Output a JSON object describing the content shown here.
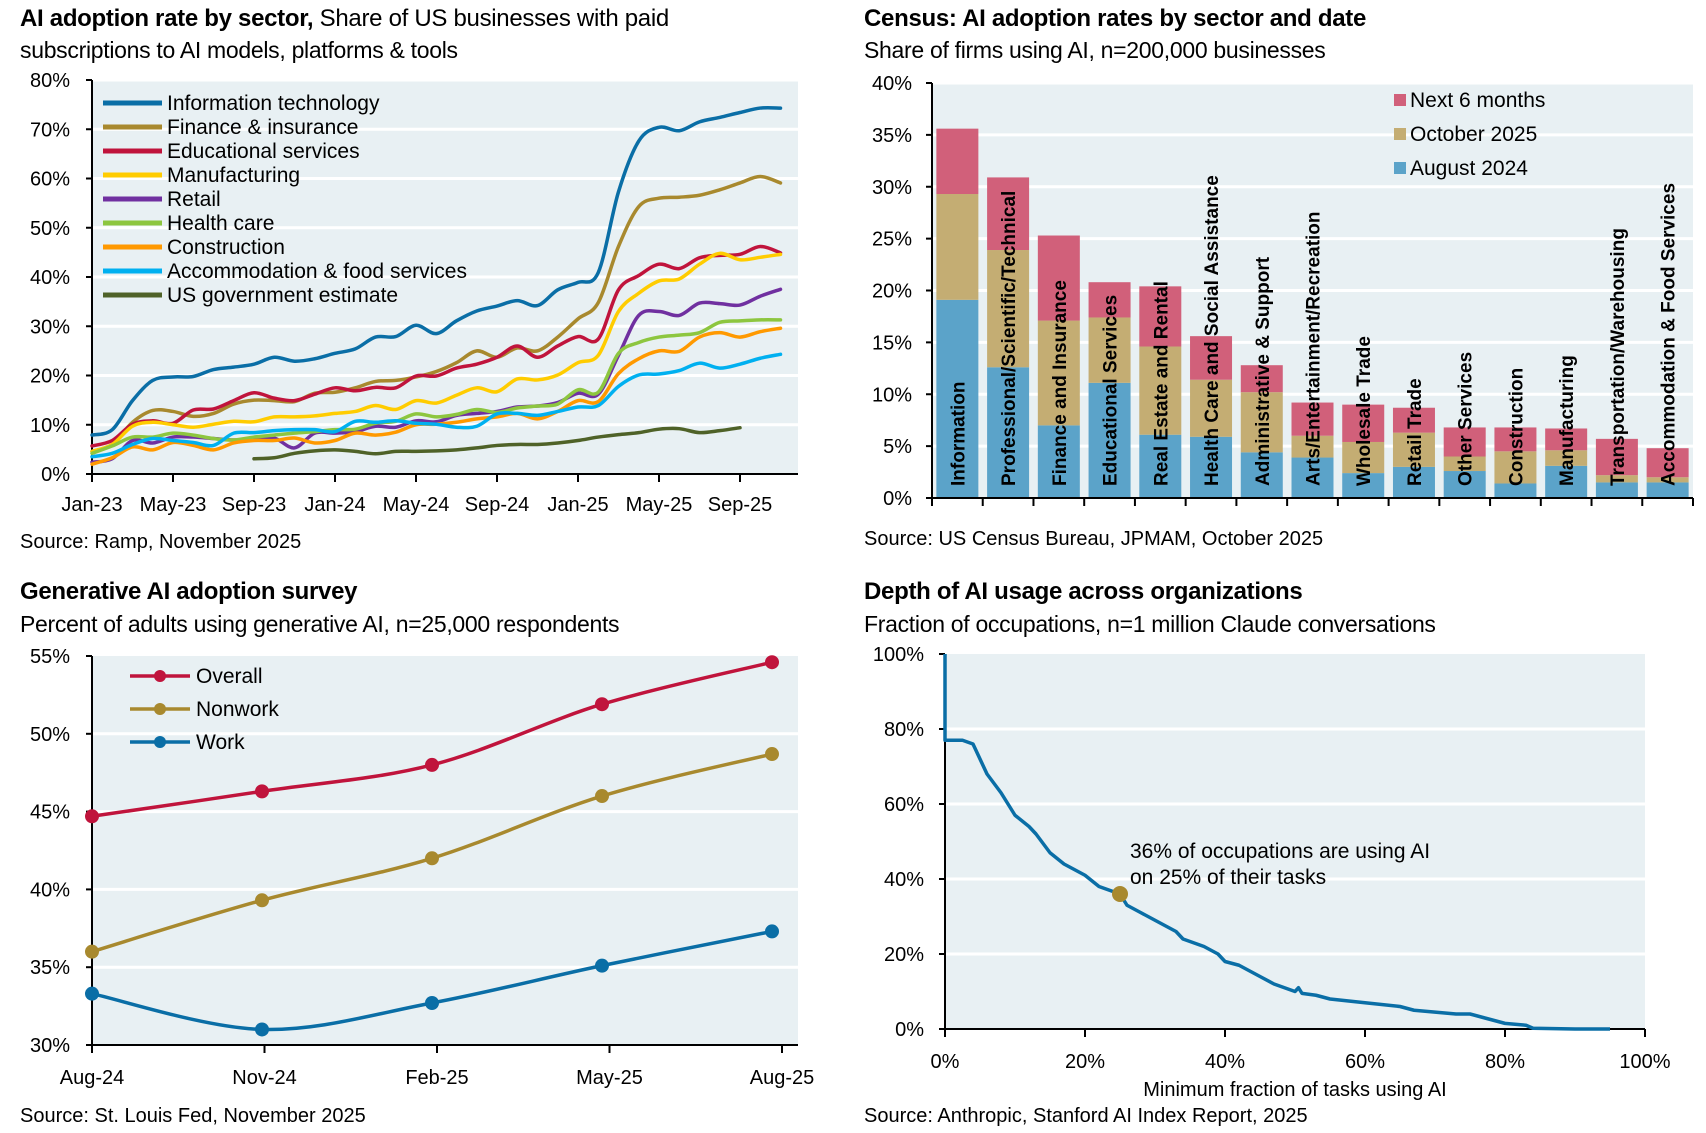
{
  "chart_data": [
    {
      "type": "line",
      "title": "AI adoption rate by sector,",
      "subtitle_inline": "Share of US businesses with paid",
      "subtitle": "subscriptions to AI models, platforms & tools",
      "source": "Source: Ramp, November 2025",
      "ylim": [
        0,
        80
      ],
      "yticks": [
        "0%",
        "10%",
        "20%",
        "30%",
        "40%",
        "50%",
        "60%",
        "70%",
        "80%"
      ],
      "xticks": [
        "Jan-23",
        "May-23",
        "Sep-23",
        "Jan-24",
        "May-24",
        "Sep-24",
        "Jan-25",
        "May-25",
        "Sep-25"
      ],
      "x": [
        "Jan-23",
        "Feb-23",
        "Mar-23",
        "Apr-23",
        "May-23",
        "Jun-23",
        "Jul-23",
        "Aug-23",
        "Sep-23",
        "Oct-23",
        "Nov-23",
        "Dec-23",
        "Jan-24",
        "Feb-24",
        "Mar-24",
        "Apr-24",
        "May-24",
        "Jun-24",
        "Jul-24",
        "Aug-24",
        "Sep-24",
        "Oct-24",
        "Nov-24",
        "Dec-24",
        "Jan-25",
        "Feb-25",
        "Mar-25",
        "Apr-25",
        "May-25",
        "Jun-25",
        "Jul-25",
        "Aug-25",
        "Sep-25",
        "Oct-25",
        "Nov-25"
      ],
      "grid": true,
      "legend": "top-left",
      "background": "#e8f0f3",
      "series": [
        {
          "name": "Information technology",
          "color": "#0a6ea6",
          "values": [
            7.9,
            9,
            14.9,
            19,
            19.7,
            19.8,
            21.2,
            21.7,
            22.3,
            23.7,
            22.9,
            23.4,
            24.5,
            25.4,
            27.8,
            27.9,
            30.2,
            28.5,
            31.1,
            33.1,
            34.1,
            35.2,
            34.2,
            37.4,
            38.9,
            40.9,
            57.3,
            67.6,
            70.4,
            69.7,
            71.5,
            72.4,
            73.4,
            74.3,
            74.3
          ]
        },
        {
          "name": "Finance & insurance",
          "color": "#a8892e",
          "values": [
            4.6,
            6,
            10.5,
            12.9,
            12.7,
            11.7,
            12.3,
            14.2,
            15,
            14.9,
            14.7,
            16.4,
            16.6,
            17.5,
            18.8,
            19,
            19.7,
            20.8,
            22.6,
            25,
            23.7,
            25.6,
            25,
            27.8,
            31.5,
            34.8,
            46.2,
            54.3,
            56,
            56.2,
            56.6,
            57.7,
            59.1,
            60.4,
            59.1
          ]
        },
        {
          "name": "Educational services",
          "color": "#c0143c",
          "values": [
            5.7,
            6.8,
            10.1,
            10.8,
            10.3,
            13,
            13.2,
            14.9,
            16.5,
            15.4,
            14.9,
            16.2,
            17.5,
            16.9,
            17.6,
            17.5,
            19.9,
            19.9,
            21.5,
            22.3,
            23.7,
            26,
            23.7,
            26,
            27.9,
            27.4,
            37.4,
            40.3,
            42.6,
            41.7,
            43.9,
            44.4,
            44.6,
            46.2,
            44.9
          ]
        },
        {
          "name": "Manufacturing",
          "color": "#ffcc00",
          "values": [
            4.6,
            6,
            9.7,
            10.5,
            10,
            9.5,
            10.1,
            10.7,
            10.6,
            11.6,
            11.6,
            11.8,
            12.3,
            12.7,
            13.9,
            13.1,
            14.9,
            14.4,
            16,
            17.5,
            16.7,
            19.3,
            19.1,
            20.1,
            22.6,
            24.1,
            33,
            36.7,
            39.2,
            39.6,
            42.6,
            44.8,
            43.5,
            44,
            44.6
          ]
        },
        {
          "name": "Retail",
          "color": "#7030a0",
          "values": [
            2.4,
            3.1,
            6.8,
            6.3,
            7.5,
            7.5,
            7.2,
            6.9,
            7.2,
            7.3,
            5.3,
            8.3,
            8.3,
            8.6,
            9.7,
            9.5,
            10.8,
            10.6,
            11.9,
            12.3,
            12.7,
            13.6,
            13.8,
            14.5,
            16.4,
            16.2,
            24.1,
            32.2,
            33,
            32.2,
            34.7,
            34.6,
            34.3,
            36.1,
            37.5
          ]
        },
        {
          "name": "Health care",
          "color": "#8dc63f",
          "values": [
            4.2,
            5.7,
            7.5,
            7.5,
            8.3,
            7.9,
            7.2,
            6.9,
            7.5,
            7.9,
            8.3,
            8.6,
            9,
            9.1,
            10.3,
            10.7,
            12.2,
            11.6,
            12.1,
            13.1,
            12.5,
            13.4,
            13.8,
            14.2,
            17.1,
            16.6,
            24.5,
            26.7,
            27.8,
            28.2,
            28.7,
            30.8,
            31.1,
            31.3,
            31.3
          ]
        },
        {
          "name": "Construction",
          "color": "#ff9900",
          "values": [
            2,
            3.3,
            5.5,
            4.9,
            6.4,
            5.8,
            4.9,
            6.3,
            6.8,
            6.8,
            7.3,
            6.3,
            6.8,
            8.3,
            7.9,
            8.5,
            10,
            10.1,
            10.5,
            11.2,
            11.6,
            12.3,
            11.2,
            12.7,
            14.9,
            14.7,
            20.4,
            23.4,
            25,
            24.9,
            27.8,
            28.7,
            27.8,
            28.9,
            29.6
          ]
        },
        {
          "name": "Accommodation & food services",
          "color": "#00b0f0",
          "values": [
            3.5,
            4.2,
            6,
            7.2,
            6.8,
            6.4,
            5.8,
            8.3,
            8.4,
            8.8,
            9,
            9,
            8.6,
            10.7,
            10.5,
            10.8,
            10.3,
            10.1,
            9.5,
            9.7,
            12.2,
            12.3,
            11.9,
            12.7,
            13.6,
            13.9,
            17.8,
            20.1,
            20.3,
            21,
            22.5,
            21.5,
            22.3,
            23.5,
            24.3
          ]
        },
        {
          "name": "US government estimate",
          "color": "#4f6228",
          "values": [
            null,
            null,
            null,
            null,
            null,
            null,
            null,
            null,
            3.1,
            3.3,
            4.2,
            4.7,
            4.9,
            4.6,
            4.1,
            4.6,
            4.6,
            4.7,
            4.9,
            5.3,
            5.8,
            6,
            6,
            6.3,
            6.8,
            7.5,
            8,
            8.4,
            9.1,
            9.2,
            8.4,
            8.8,
            9.4,
            null,
            null
          ]
        }
      ]
    },
    {
      "type": "bar",
      "stacked": true,
      "title": "Census: AI adoption rates by sector and date",
      "subtitle": "Share of firms using AI, n=200,000 businesses",
      "source": "Source: US Census Bureau, JPMAM, October 2025",
      "ylim": [
        0,
        40
      ],
      "yticks": [
        "0%",
        "5%",
        "10%",
        "15%",
        "20%",
        "25%",
        "30%",
        "35%",
        "40%"
      ],
      "grid": true,
      "legend": "top-right",
      "categories": [
        "Information",
        "Professional/Scientific/Technical",
        "Finance and Insurance",
        "Educational Services",
        "Real Estate and Rental",
        "Health Care and Social Assistance",
        "Administrative & Support",
        "Arts/Entertainment/Recreation",
        "Wholesale Trade",
        "Retail Trade",
        "Other Services",
        "Construction",
        "Manufacturing",
        "Transportation/Warehousing",
        "Accommodation & Food Services"
      ],
      "series": [
        {
          "name": "August 2024",
          "color": "#5ba3c9",
          "values": [
            19.1,
            12.6,
            7.0,
            11.1,
            6.1,
            5.9,
            4.4,
            3.9,
            2.4,
            3.0,
            2.6,
            1.4,
            3.1,
            1.5,
            1.5
          ]
        },
        {
          "name": "October 2025",
          "color": "#c4ad73",
          "values": [
            10.2,
            11.3,
            10.1,
            6.3,
            8.5,
            5.5,
            5.8,
            2.1,
            3.0,
            3.3,
            1.4,
            3.1,
            1.5,
            0.7,
            0.5
          ]
        },
        {
          "name": "Next 6 months",
          "color": "#d1607a",
          "values": [
            6.3,
            7.0,
            8.2,
            3.4,
            5.8,
            4.2,
            2.6,
            3.2,
            3.6,
            2.4,
            2.8,
            2.3,
            2.1,
            3.5,
            2.8
          ]
        }
      ]
    },
    {
      "type": "line",
      "title": "Generative AI adoption survey",
      "subtitle": "Percent of adults using generative AI, n=25,000 respondents",
      "source": "Source: St. Louis Fed, November 2025",
      "ylim": [
        30,
        55
      ],
      "yticks": [
        "30%",
        "35%",
        "40%",
        "45%",
        "50%",
        "55%"
      ],
      "categories": [
        "Aug-24",
        "Nov-24",
        "Feb-25",
        "May-25",
        "Aug-25"
      ],
      "grid": true,
      "legend": "top-left",
      "series": [
        {
          "name": "Overall",
          "color": "#c0143c",
          "values": [
            44.7,
            46.3,
            48.0,
            51.9,
            54.6
          ]
        },
        {
          "name": "Nonwork",
          "color": "#a8892e",
          "values": [
            36.0,
            39.3,
            42.0,
            46.0,
            48.7
          ]
        },
        {
          "name": "Work",
          "color": "#0a6ea6",
          "values": [
            33.3,
            31.0,
            32.7,
            35.1,
            37.3
          ]
        }
      ]
    },
    {
      "type": "line",
      "title": "Depth of AI usage across organizations",
      "subtitle": "Fraction of occupations, n=1 million Claude conversations",
      "source": "Source: Anthropic, Stanford AI Index Report, 2025",
      "xlabel": "Minimum fraction of tasks using AI",
      "xlim": [
        0,
        100
      ],
      "ylim": [
        0,
        100
      ],
      "xticks": [
        "0%",
        "20%",
        "40%",
        "60%",
        "80%",
        "100%"
      ],
      "yticks": [
        "0%",
        "20%",
        "40%",
        "60%",
        "80%",
        "100%"
      ],
      "grid": true,
      "color": "#0a6ea6",
      "points": [
        [
          0,
          100
        ],
        [
          0,
          77
        ],
        [
          2.5,
          77
        ],
        [
          4,
          76
        ],
        [
          5,
          72
        ],
        [
          6,
          68
        ],
        [
          8,
          63
        ],
        [
          10,
          57
        ],
        [
          12,
          54
        ],
        [
          13,
          52
        ],
        [
          15,
          47
        ],
        [
          17,
          44
        ],
        [
          20,
          41
        ],
        [
          22,
          38
        ],
        [
          25,
          36
        ],
        [
          26,
          33
        ],
        [
          28,
          31
        ],
        [
          30,
          29
        ],
        [
          32,
          27
        ],
        [
          33,
          26
        ],
        [
          34,
          24
        ],
        [
          37,
          22
        ],
        [
          39,
          20
        ],
        [
          40,
          18
        ],
        [
          42,
          17
        ],
        [
          45,
          14
        ],
        [
          47,
          12
        ],
        [
          50,
          10
        ],
        [
          50.5,
          11
        ],
        [
          51,
          9.5
        ],
        [
          53,
          9
        ],
        [
          55,
          8
        ],
        [
          60,
          7
        ],
        [
          65,
          6
        ],
        [
          67,
          5
        ],
        [
          70,
          4.5
        ],
        [
          73,
          4
        ],
        [
          75,
          4
        ],
        [
          77,
          3
        ],
        [
          80,
          1.5
        ],
        [
          83,
          1
        ],
        [
          84,
          0.2
        ],
        [
          90,
          0
        ],
        [
          95,
          0
        ]
      ],
      "annotation": {
        "x": 25,
        "y": 36,
        "color": "#a8892e",
        "lines": [
          "36% of occupations are using AI",
          "on 25% of their tasks"
        ]
      }
    }
  ]
}
